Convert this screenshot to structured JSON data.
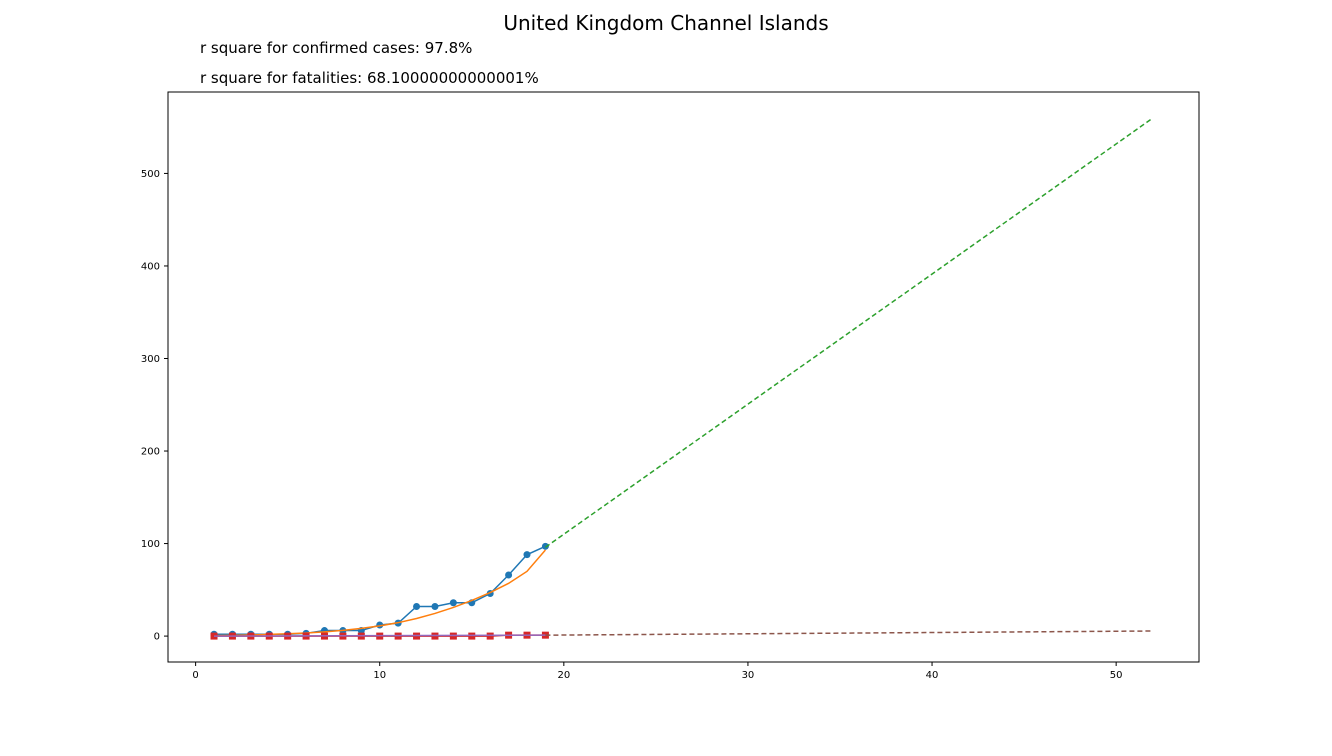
{
  "chart_data": {
    "type": "line",
    "title": "United Kingdom Channel Islands",
    "annotations": [
      "r square for confirmed cases: 97.8%",
      "r square for fatalities: 68.10000000000001%"
    ],
    "xlabel": "",
    "ylabel": "",
    "xlim": [
      -1.5,
      54.5
    ],
    "ylim": [
      -28,
      588
    ],
    "xticks": [
      0,
      10,
      20,
      30,
      40,
      50
    ],
    "yticks": [
      0,
      100,
      200,
      300,
      400,
      500
    ],
    "grid": false,
    "series": [
      {
        "role": "confirmed-actual",
        "color": "#1f77b4",
        "marker": "circle",
        "style": "solid",
        "x": [
          1,
          2,
          3,
          4,
          5,
          6,
          7,
          8,
          9,
          10,
          11,
          12,
          13,
          14,
          15,
          16,
          17,
          18,
          19
        ],
        "y": [
          2,
          2,
          2,
          2,
          2,
          3,
          6,
          6,
          6,
          12,
          14,
          32,
          32,
          36,
          36,
          46,
          66,
          88,
          97
        ]
      },
      {
        "role": "confirmed-fit",
        "color": "#ff7f0e",
        "style": "solid",
        "x": [
          1,
          2,
          3,
          4,
          5,
          6,
          7,
          8,
          9,
          10,
          11,
          12,
          13,
          14,
          15,
          16,
          17,
          18,
          19
        ],
        "y": [
          0.5,
          0.8,
          1.2,
          1.8,
          2.5,
          3.4,
          4.6,
          6.2,
          8.3,
          11,
          14.5,
          19,
          24.5,
          31,
          38.5,
          47,
          57,
          70,
          93
        ]
      },
      {
        "role": "confirmed-projection",
        "color": "#2ca02c",
        "style": "dashed",
        "x": [
          19,
          52
        ],
        "y": [
          96,
          560
        ]
      },
      {
        "role": "fatalities-actual",
        "color": "#d62728",
        "marker": "square",
        "style": "solid",
        "x": [
          1,
          2,
          3,
          4,
          5,
          6,
          7,
          8,
          9,
          10,
          11,
          12,
          13,
          14,
          15,
          16,
          17,
          18,
          19
        ],
        "y": [
          0,
          0,
          0,
          0,
          0,
          0,
          0,
          0,
          0,
          0,
          0,
          0,
          0,
          0,
          0,
          0,
          1,
          1,
          1
        ]
      },
      {
        "role": "fatalities-fit",
        "color": "#9467bd",
        "style": "solid",
        "x": [
          1,
          19
        ],
        "y": [
          0,
          1
        ]
      },
      {
        "role": "fatalities-projection",
        "color": "#8c564b",
        "style": "dashed",
        "x": [
          19,
          52
        ],
        "y": [
          1,
          5.5
        ]
      }
    ]
  }
}
